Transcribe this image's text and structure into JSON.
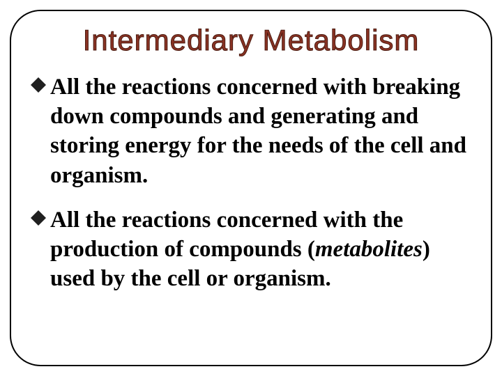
{
  "slide": {
    "title": "Intermediary Metabolism",
    "title_fontsize": 42,
    "title_color": "#8a3324",
    "title_stroke": "#4a1a0f",
    "title_font": "Impact",
    "body_fontsize": 33,
    "body_color": "#000000",
    "body_font": "Georgia",
    "background_color": "#ffffff",
    "border_color": "#000000",
    "border_radius": 44,
    "bullet_fill": "#202020",
    "bullet_size": 22,
    "bullets": [
      {
        "text_pre": "All the reactions concerned with breaking down compounds and generating and storing energy for the needs of the cell and organism.",
        "italic": "",
        "text_post": ""
      },
      {
        "text_pre": "All the reactions concerned with the production of compounds (",
        "italic": "metabolites",
        "text_post": ") used by the cell or organism."
      }
    ]
  }
}
